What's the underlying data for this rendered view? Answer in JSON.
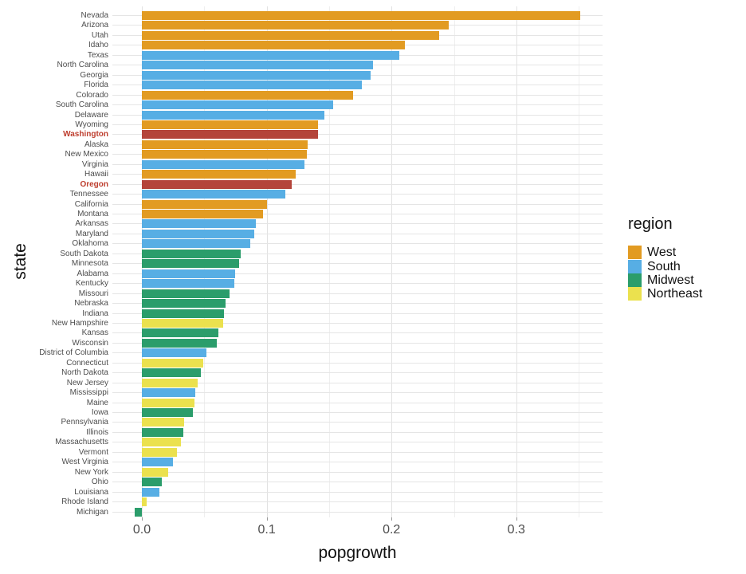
{
  "figure": {
    "xlabel": "popgrowth",
    "ylabel": "state"
  },
  "colors": {
    "regions": {
      "West": "#E29B22",
      "South": "#57AEE4",
      "Midwest": "#2B9D6B",
      "Northeast": "#EBE14E"
    },
    "highlight_bar": "#B4443A",
    "highlight_label": "#BE3E2E"
  },
  "chart_data": {
    "type": "bar",
    "orientation": "horizontal",
    "title": "",
    "xlabel": "popgrowth",
    "ylabel": "state",
    "xlim": [
      -0.024,
      0.369
    ],
    "x_ticks": [
      0.0,
      0.1,
      0.2,
      0.3
    ],
    "x_tick_labels": [
      "0.0",
      "0.1",
      "0.2",
      "0.3"
    ],
    "x_minor_ticks": [
      0.05,
      0.15,
      0.25,
      0.35
    ],
    "grid": true,
    "legend": {
      "title": "region",
      "position": "right",
      "entries": [
        {
          "label": "West"
        },
        {
          "label": "South"
        },
        {
          "label": "Midwest"
        },
        {
          "label": "Northeast"
        }
      ]
    },
    "bars": [
      {
        "state": "Nevada",
        "region": "West",
        "value": 0.351,
        "highlighted": false
      },
      {
        "state": "Arizona",
        "region": "West",
        "value": 0.246,
        "highlighted": false
      },
      {
        "state": "Utah",
        "region": "West",
        "value": 0.238,
        "highlighted": false
      },
      {
        "state": "Idaho",
        "region": "West",
        "value": 0.211,
        "highlighted": false
      },
      {
        "state": "Texas",
        "region": "South",
        "value": 0.206,
        "highlighted": false
      },
      {
        "state": "North Carolina",
        "region": "South",
        "value": 0.185,
        "highlighted": false
      },
      {
        "state": "Georgia",
        "region": "South",
        "value": 0.183,
        "highlighted": false
      },
      {
        "state": "Florida",
        "region": "South",
        "value": 0.176,
        "highlighted": false
      },
      {
        "state": "Colorado",
        "region": "West",
        "value": 0.169,
        "highlighted": false
      },
      {
        "state": "South Carolina",
        "region": "South",
        "value": 0.153,
        "highlighted": false
      },
      {
        "state": "Delaware",
        "region": "South",
        "value": 0.146,
        "highlighted": false
      },
      {
        "state": "Wyoming",
        "region": "West",
        "value": 0.141,
        "highlighted": false
      },
      {
        "state": "Washington",
        "region": "West",
        "value": 0.141,
        "highlighted": true
      },
      {
        "state": "Alaska",
        "region": "West",
        "value": 0.133,
        "highlighted": false
      },
      {
        "state": "New Mexico",
        "region": "West",
        "value": 0.132,
        "highlighted": false
      },
      {
        "state": "Virginia",
        "region": "South",
        "value": 0.13,
        "highlighted": false
      },
      {
        "state": "Hawaii",
        "region": "West",
        "value": 0.123,
        "highlighted": false
      },
      {
        "state": "Oregon",
        "region": "West",
        "value": 0.12,
        "highlighted": true
      },
      {
        "state": "Tennessee",
        "region": "South",
        "value": 0.115,
        "highlighted": false
      },
      {
        "state": "California",
        "region": "West",
        "value": 0.1,
        "highlighted": false
      },
      {
        "state": "Montana",
        "region": "West",
        "value": 0.097,
        "highlighted": false
      },
      {
        "state": "Arkansas",
        "region": "South",
        "value": 0.091,
        "highlighted": false
      },
      {
        "state": "Maryland",
        "region": "South",
        "value": 0.09,
        "highlighted": false
      },
      {
        "state": "Oklahoma",
        "region": "South",
        "value": 0.087,
        "highlighted": false
      },
      {
        "state": "South Dakota",
        "region": "Midwest",
        "value": 0.079,
        "highlighted": false
      },
      {
        "state": "Minnesota",
        "region": "Midwest",
        "value": 0.078,
        "highlighted": false
      },
      {
        "state": "Alabama",
        "region": "South",
        "value": 0.075,
        "highlighted": false
      },
      {
        "state": "Kentucky",
        "region": "South",
        "value": 0.074,
        "highlighted": false
      },
      {
        "state": "Missouri",
        "region": "Midwest",
        "value": 0.07,
        "highlighted": false
      },
      {
        "state": "Nebraska",
        "region": "Midwest",
        "value": 0.067,
        "highlighted": false
      },
      {
        "state": "Indiana",
        "region": "Midwest",
        "value": 0.066,
        "highlighted": false
      },
      {
        "state": "New Hampshire",
        "region": "Northeast",
        "value": 0.065,
        "highlighted": false
      },
      {
        "state": "Kansas",
        "region": "Midwest",
        "value": 0.061,
        "highlighted": false
      },
      {
        "state": "Wisconsin",
        "region": "Midwest",
        "value": 0.06,
        "highlighted": false
      },
      {
        "state": "District of Columbia",
        "region": "South",
        "value": 0.052,
        "highlighted": false
      },
      {
        "state": "Connecticut",
        "region": "Northeast",
        "value": 0.049,
        "highlighted": false
      },
      {
        "state": "North Dakota",
        "region": "Midwest",
        "value": 0.047,
        "highlighted": false
      },
      {
        "state": "New Jersey",
        "region": "Northeast",
        "value": 0.045,
        "highlighted": false
      },
      {
        "state": "Mississippi",
        "region": "South",
        "value": 0.043,
        "highlighted": false
      },
      {
        "state": "Maine",
        "region": "Northeast",
        "value": 0.042,
        "highlighted": false
      },
      {
        "state": "Iowa",
        "region": "Midwest",
        "value": 0.041,
        "highlighted": false
      },
      {
        "state": "Pennsylvania",
        "region": "Northeast",
        "value": 0.034,
        "highlighted": false
      },
      {
        "state": "Illinois",
        "region": "Midwest",
        "value": 0.033,
        "highlighted": false
      },
      {
        "state": "Massachusetts",
        "region": "Northeast",
        "value": 0.031,
        "highlighted": false
      },
      {
        "state": "Vermont",
        "region": "Northeast",
        "value": 0.028,
        "highlighted": false
      },
      {
        "state": "West Virginia",
        "region": "South",
        "value": 0.025,
        "highlighted": false
      },
      {
        "state": "New York",
        "region": "Northeast",
        "value": 0.021,
        "highlighted": false
      },
      {
        "state": "Ohio",
        "region": "Midwest",
        "value": 0.016,
        "highlighted": false
      },
      {
        "state": "Louisiana",
        "region": "South",
        "value": 0.014,
        "highlighted": false
      },
      {
        "state": "Rhode Island",
        "region": "Northeast",
        "value": 0.004,
        "highlighted": false
      },
      {
        "state": "Michigan",
        "region": "Midwest",
        "value": -0.006,
        "highlighted": false
      }
    ]
  }
}
